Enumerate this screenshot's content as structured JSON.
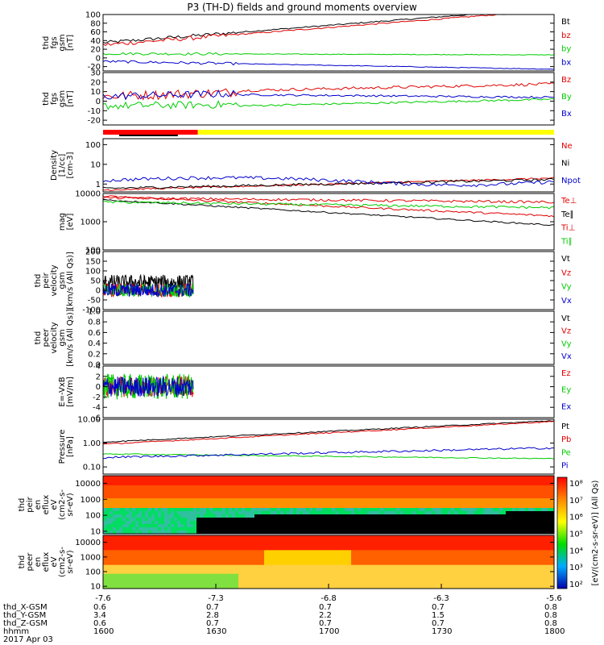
{
  "title": "P3 (TH-D) fields and ground moments overview",
  "colors": {
    "black": "#000000",
    "red": "#e00000",
    "green": "#00cc00",
    "blue": "#0000cc",
    "yellow": "#ffff00",
    "status_red": "#ff0000"
  },
  "chart_data": [
    {
      "id": "fgs",
      "type": "line",
      "ylabel": [
        "thd",
        "fgs",
        "gsm",
        "[nT]"
      ],
      "ylim": [
        -30,
        100
      ],
      "yticks": [
        "100",
        "80",
        "60",
        "40",
        "20",
        "0",
        "-20"
      ],
      "series": [
        {
          "name": "Bt",
          "color": "#000000"
        },
        {
          "name": "bz",
          "color": "#e00000"
        },
        {
          "name": "by",
          "color": "#00cc00"
        },
        {
          "name": "bx",
          "color": "#0000cc"
        }
      ]
    },
    {
      "id": "fgs2",
      "type": "line",
      "ylabel": [
        "thd",
        "fgs",
        "gsm",
        "[nT]"
      ],
      "ylim": [
        -25,
        30
      ],
      "yticks": [
        "30",
        "20",
        "10",
        "0",
        "-10",
        "-20"
      ],
      "series": [
        {
          "name": "Bz",
          "color": "#e00000"
        },
        {
          "name": "By",
          "color": "#00cc00"
        },
        {
          "name": "Bx",
          "color": "#0000cc"
        }
      ]
    },
    {
      "id": "density",
      "type": "line",
      "ylabel": [
        "Density",
        "[1/cc]",
        "[cm-3]"
      ],
      "scale": "log",
      "ylim": [
        0.4,
        200
      ],
      "yticks": [
        "100",
        "10",
        "1"
      ],
      "series": [
        {
          "name": "Ne",
          "color": "#e00000"
        },
        {
          "name": "Ni",
          "color": "#000000"
        },
        {
          "name": "Npot",
          "color": "#0000cc"
        }
      ]
    },
    {
      "id": "temp",
      "type": "line",
      "ylabel": [
        "mag",
        "[eV]"
      ],
      "scale": "log",
      "ylim": [
        100,
        10000
      ],
      "yticks": [
        "10000",
        "1000",
        "100"
      ],
      "series": [
        {
          "name": "Te⊥",
          "color": "#e00000"
        },
        {
          "name": "Te∥",
          "color": "#000000"
        },
        {
          "name": "Ti⊥",
          "color": "#e00000"
        },
        {
          "name": "Ti∥",
          "color": "#00cc00"
        }
      ]
    },
    {
      "id": "peir",
      "type": "line",
      "ylabel": [
        "thd",
        "peir",
        "velocity",
        "gsm",
        "[km/s (All Qs)]"
      ],
      "ylim": [
        -100,
        200
      ],
      "yticks": [
        "200",
        "150",
        "100",
        "50",
        "0",
        "-50",
        "-100"
      ],
      "series": [
        {
          "name": "Vt",
          "color": "#000000"
        },
        {
          "name": "Vz",
          "color": "#e00000"
        },
        {
          "name": "Vy",
          "color": "#00cc00"
        },
        {
          "name": "Vx",
          "color": "#0000cc"
        }
      ]
    },
    {
      "id": "peer",
      "type": "line",
      "ylabel": [
        "thd",
        "peer",
        "velocity",
        "gsm",
        "[km/s (All Qs)]"
      ],
      "ylim": [
        0,
        1
      ],
      "yticks": [
        "1.0",
        "0.8",
        "0.6",
        "0.4",
        "0.2",
        "0.0"
      ],
      "series": [
        {
          "name": "Vt",
          "color": "#000000"
        },
        {
          "name": "Vz",
          "color": "#e00000"
        },
        {
          "name": "Vy",
          "color": "#00cc00"
        },
        {
          "name": "Vx",
          "color": "#0000cc"
        }
      ]
    },
    {
      "id": "efield",
      "type": "line",
      "ylabel": [
        "E=-VxB",
        "[mV/m]"
      ],
      "ylim": [
        -6,
        4
      ],
      "yticks": [
        "4",
        "2",
        "0",
        "-2",
        "-4",
        "-6"
      ],
      "series": [
        {
          "name": "Ez",
          "color": "#e00000"
        },
        {
          "name": "Ey",
          "color": "#00cc00"
        },
        {
          "name": "Ex",
          "color": "#0000cc"
        }
      ]
    },
    {
      "id": "pressure",
      "type": "line",
      "ylabel": [
        "Pressure",
        "[nPa]"
      ],
      "scale": "log",
      "ylim": [
        0.05,
        10
      ],
      "yticks": [
        "10.00",
        "1.00",
        "0.10"
      ],
      "series": [
        {
          "name": "Pt",
          "color": "#000000"
        },
        {
          "name": "Pb",
          "color": "#e00000"
        },
        {
          "name": "Pe",
          "color": "#00cc00"
        },
        {
          "name": "Pi",
          "color": "#0000cc"
        }
      ]
    },
    {
      "id": "peir_spec",
      "type": "heatmap",
      "ylabel": [
        "thd",
        "peir",
        "en",
        "eflux",
        "eV",
        "(cm2-s-",
        "sr-eV)"
      ],
      "scale": "log",
      "ylim": [
        7,
        30000
      ],
      "yticks": [
        "10000",
        "1000",
        "100",
        "10"
      ]
    },
    {
      "id": "peer_spec",
      "type": "heatmap",
      "ylabel": [
        "thd",
        "peer",
        "en",
        "eflux",
        "eV",
        "(cm2-s-",
        "sr-eV)"
      ],
      "scale": "log",
      "ylim": [
        7,
        30000
      ],
      "yticks": [
        "10000",
        "1000",
        "100",
        "10"
      ]
    }
  ],
  "colorbar": {
    "label": "[eV/(cm2-s-sr-eV)] (All Qs)",
    "ticks": [
      "10⁸",
      "10⁷",
      "10⁶",
      "10⁵",
      "10⁴",
      "10³",
      "10²"
    ]
  },
  "xaxis": {
    "ticks": [
      "-7.6",
      "-7.3",
      "-6.8",
      "-6.3",
      "-5.6"
    ]
  },
  "footer": {
    "rows": [
      {
        "label": "thd_X-GSM",
        "values": [
          "0.6",
          "0.7",
          "0.7",
          "0.7",
          "0.8"
        ]
      },
      {
        "label": "thd_Y-GSM",
        "values": [
          "3.4",
          "2.8",
          "2.2",
          "1.5",
          "0.8"
        ]
      },
      {
        "label": "thd_Z-GSM",
        "values": [
          "0.6",
          "0.7",
          "0.7",
          "0.7",
          "0.8"
        ]
      },
      {
        "label": "hhmm",
        "values": [
          "1600",
          "1630",
          "1700",
          "1730",
          "1800"
        ]
      }
    ],
    "date": "2017 Apr 03"
  }
}
